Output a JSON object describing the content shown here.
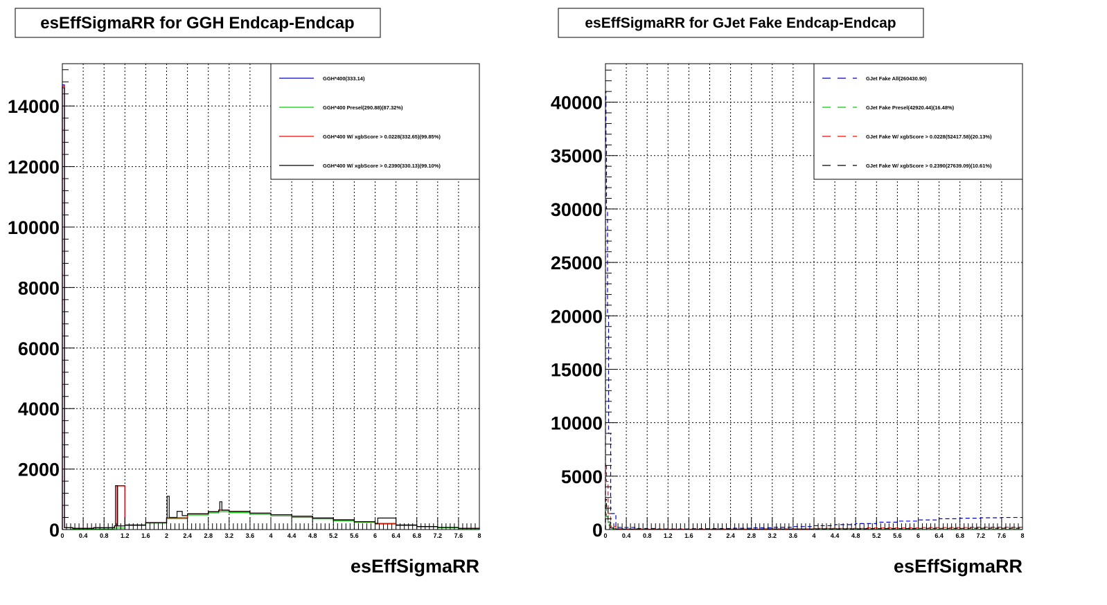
{
  "chart_data": [
    {
      "type": "histogram",
      "title": "esEffSigmaRR for GGH Endcap-Endcap",
      "xlabel": "esEffSigmaRR",
      "ylabel": "",
      "xlim": [
        0,
        8
      ],
      "ylim": [
        0,
        15400
      ],
      "x_tick_labels": [
        "0",
        "0.4",
        "0.8",
        "1.2",
        "1.6",
        "2",
        "2.4",
        "2.8",
        "3.2",
        "3.6",
        "4",
        "4.4",
        "4.8",
        "5.2",
        "5.6",
        "6",
        "6.4",
        "6.8",
        "7.2",
        "7.6",
        "8"
      ],
      "y_tick_labels": [
        "0",
        "2000",
        "4000",
        "6000",
        "8000",
        "10000",
        "12000",
        "14000"
      ],
      "legend": {
        "position": "top-right",
        "entries": [
          "GGH*400(333.14)",
          "GGH*400 Presel(290.88)(87.32%)",
          "GGH*400 W/ xgbScore > 0.0228(332.65)(99.85%)",
          "GGH*400 W/ xgbScore > 0.2390(330.13)(99.10%)"
        ]
      },
      "series": [
        {
          "name": "GGH*400(333.14)",
          "color": "#0000cc",
          "style": "solid",
          "x": [
            0,
            0.04,
            0.2,
            0.6,
            1.0,
            1.05,
            1.2,
            1.6,
            2.0,
            2.4,
            2.8,
            3.0,
            3.2,
            3.6,
            4.0,
            4.4,
            4.8,
            5.2,
            5.6,
            6.0,
            6.4,
            6.8,
            7.2,
            7.6,
            8.0
          ],
          "y": [
            14700,
            60,
            40,
            60,
            120,
            1450,
            150,
            230,
            390,
            520,
            590,
            640,
            600,
            540,
            490,
            440,
            380,
            320,
            260,
            200,
            150,
            100,
            70,
            40,
            20
          ]
        },
        {
          "name": "GGH*400 Presel(290.88)(87.32%)",
          "color": "#00cc00",
          "style": "solid",
          "x": [
            0,
            0.2,
            0.6,
            1.0,
            1.2,
            1.6,
            2.0,
            2.4,
            2.8,
            3.0,
            3.2,
            3.6,
            4.0,
            4.4,
            4.8,
            5.2,
            5.6,
            6.0,
            6.4,
            6.8,
            7.2,
            7.6,
            8.0
          ],
          "y": [
            0,
            10,
            20,
            50,
            130,
            210,
            360,
            480,
            550,
            590,
            560,
            500,
            450,
            400,
            350,
            290,
            240,
            180,
            130,
            90,
            60,
            30,
            10
          ]
        },
        {
          "name": "GGH*400 W/ xgbScore > 0.0228(332.65)(99.85%)",
          "color": "#ff0000",
          "style": "solid",
          "x": [
            0,
            0.04,
            0.2,
            0.6,
            1.0,
            1.05,
            1.2,
            1.6,
            2.0,
            2.4,
            2.8,
            3.0,
            3.2,
            3.6,
            4.0,
            4.4,
            4.8,
            5.2,
            5.6,
            6.0,
            6.4,
            6.8,
            7.2,
            7.6,
            8.0
          ],
          "y": [
            14650,
            60,
            40,
            60,
            120,
            1440,
            150,
            230,
            390,
            520,
            590,
            640,
            600,
            540,
            490,
            440,
            380,
            320,
            260,
            200,
            150,
            100,
            70,
            40,
            20
          ]
        },
        {
          "name": "GGH*400 W/ xgbScore > 0.2390(330.13)(99.10%)",
          "color": "#000000",
          "style": "solid",
          "x": [
            0,
            0.04,
            0.2,
            0.6,
            1.0,
            1.02,
            1.06,
            1.2,
            1.6,
            2.0,
            2.01,
            2.05,
            2.2,
            2.3,
            2.4,
            2.8,
            3.0,
            3.02,
            3.06,
            3.2,
            3.6,
            4.0,
            4.4,
            4.8,
            5.2,
            5.6,
            6.0,
            6.05,
            6.4,
            6.8,
            7.2,
            7.6,
            8.0
          ],
          "y": [
            14600,
            60,
            40,
            60,
            120,
            1450,
            120,
            150,
            230,
            390,
            1100,
            400,
            600,
            460,
            520,
            590,
            640,
            920,
            640,
            600,
            540,
            490,
            440,
            380,
            320,
            260,
            200,
            380,
            150,
            100,
            70,
            40,
            20
          ]
        }
      ]
    },
    {
      "type": "histogram",
      "title": "esEffSigmaRR for GJet Fake Endcap-Endcap",
      "xlabel": "esEffSigmaRR",
      "ylabel": "",
      "xlim": [
        0,
        8
      ],
      "ylim": [
        0,
        43600
      ],
      "x_tick_labels": [
        "0",
        "0.4",
        "0.8",
        "1.2",
        "1.6",
        "2",
        "2.4",
        "2.8",
        "3.2",
        "3.6",
        "4",
        "4.4",
        "4.8",
        "5.2",
        "5.6",
        "6",
        "6.4",
        "6.8",
        "7.2",
        "7.6",
        "8"
      ],
      "y_tick_labels": [
        "0",
        "5000",
        "10000",
        "15000",
        "20000",
        "25000",
        "30000",
        "35000",
        "40000"
      ],
      "legend": {
        "position": "top-right",
        "entries": [
          "GJet Fake All(260430.90)",
          "GJet Fake Presel(42920.44)(16.48%)",
          "GJet Fake W/ xgbScore > 0.0228(52417.58)(20.13%)",
          "GJet Fake W/ xgbScore > 0.2390(27639.09)(10.61%)"
        ]
      },
      "series": [
        {
          "name": "GJet Fake All(260430.90)",
          "color": "#0000cc",
          "style": "dashed",
          "x": [
            0,
            0.01,
            0.02,
            0.04,
            0.06,
            0.1,
            0.2,
            0.6,
            1.0,
            1.6,
            2.0,
            2.4,
            2.8,
            3.2,
            3.6,
            4.0,
            4.4,
            4.8,
            5.2,
            5.6,
            6.0,
            6.4,
            6.8,
            7.2,
            7.6,
            8.0
          ],
          "y": [
            41000,
            36000,
            30000,
            20000,
            9000,
            1500,
            200,
            100,
            60,
            80,
            100,
            120,
            160,
            210,
            280,
            360,
            460,
            560,
            690,
            790,
            900,
            1010,
            1060,
            1100,
            1130,
            1050
          ]
        },
        {
          "name": "GJet Fake Presel(42920.44)(16.48%)",
          "color": "#00cc00",
          "style": "dashed",
          "x": [
            0,
            0.02,
            0.05,
            0.1,
            0.4,
            1.0,
            2.0,
            3.0,
            4.0,
            5.0,
            6.0,
            7.0,
            8.0
          ],
          "y": [
            2000,
            1200,
            400,
            80,
            20,
            10,
            10,
            10,
            10,
            10,
            10,
            10,
            10
          ]
        },
        {
          "name": "GJet Fake W/ xgbScore > 0.0228(52417.58)(20.13%)",
          "color": "#ff0000",
          "style": "dashed",
          "x": [
            0,
            0.02,
            0.05,
            0.1,
            0.2,
            0.6,
            1.0,
            2.0,
            3.0,
            4.0,
            5.0,
            6.0,
            7.0,
            8.0
          ],
          "y": [
            6200,
            4500,
            1500,
            300,
            60,
            30,
            30,
            40,
            70,
            110,
            150,
            190,
            220,
            240
          ]
        },
        {
          "name": "GJet Fake W/ xgbScore > 0.2390(27639.09)(10.61%)",
          "color": "#000000",
          "style": "dashed",
          "x": [
            0,
            0.02,
            0.05,
            0.1,
            0.2,
            0.6,
            1.0,
            2.0,
            3.0,
            4.0,
            5.0,
            6.0,
            7.0,
            8.0
          ],
          "y": [
            2800,
            2000,
            700,
            150,
            40,
            20,
            20,
            30,
            50,
            70,
            90,
            110,
            120,
            130
          ]
        }
      ]
    }
  ]
}
